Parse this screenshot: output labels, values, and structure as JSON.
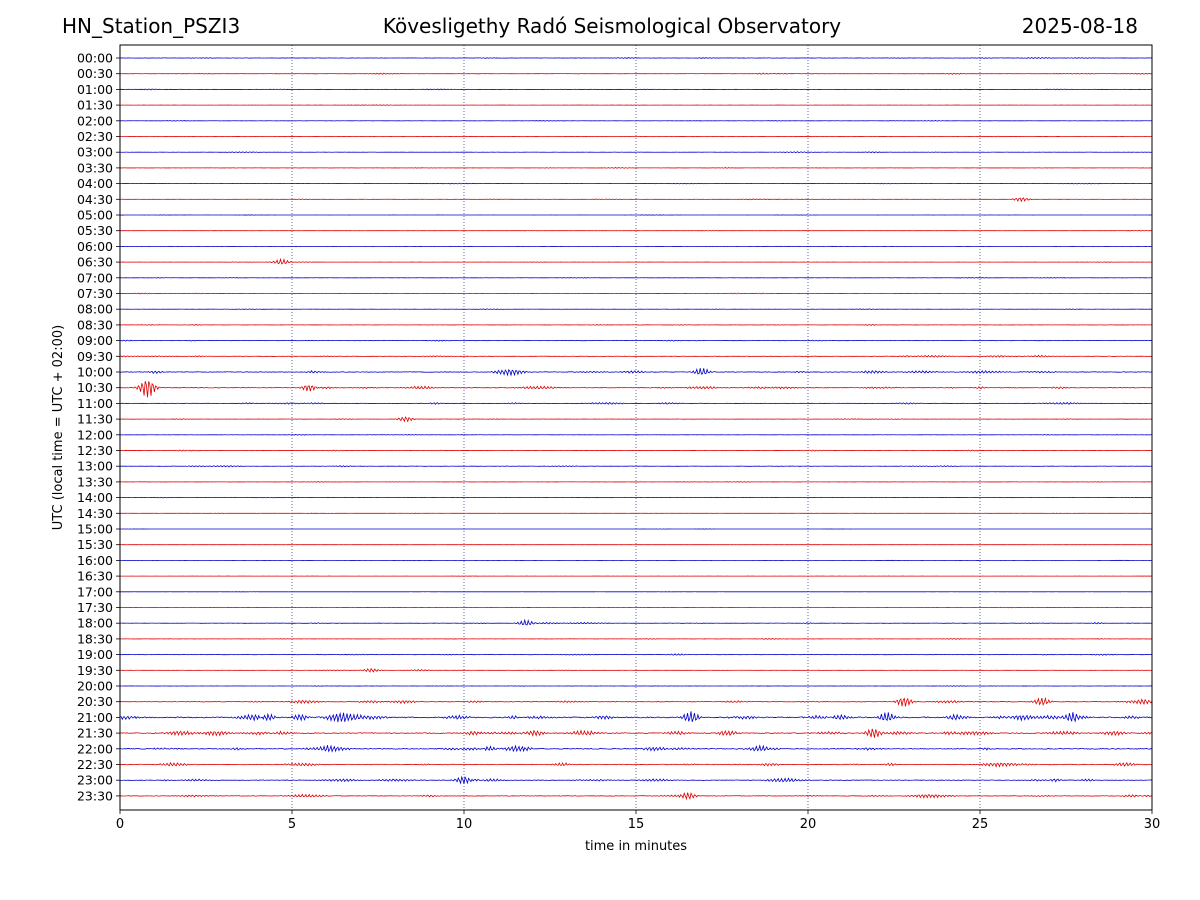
{
  "header": {
    "station": "HN_Station_PSZI3",
    "observatory": "Kövesligethy Radó Seismological Observatory",
    "date": "2025-08-18"
  },
  "chart_data": {
    "type": "line",
    "title": "Kövesligethy Radó Seismological Observatory",
    "xlabel": "time in minutes",
    "ylabel": "UTC (local time = UTC + 02:00)",
    "xlim": [
      0,
      30
    ],
    "xticks": [
      0,
      5,
      10,
      15,
      20,
      25,
      30
    ],
    "grid": "vertical dotted lines at 5-minute ticks",
    "row_labels": [
      "00:00",
      "00:30",
      "01:00",
      "01:30",
      "02:00",
      "02:30",
      "03:00",
      "03:30",
      "04:00",
      "04:30",
      "05:00",
      "05:30",
      "06:00",
      "06:30",
      "07:00",
      "07:30",
      "08:00",
      "08:30",
      "09:00",
      "09:30",
      "10:00",
      "10:30",
      "11:00",
      "11:30",
      "12:00",
      "12:30",
      "13:00",
      "13:30",
      "14:00",
      "14:30",
      "15:00",
      "15:30",
      "16:00",
      "16:30",
      "17:00",
      "17:30",
      "18:00",
      "18:30",
      "19:00",
      "19:30",
      "20:00",
      "20:30",
      "21:00",
      "21:30",
      "22:00",
      "22:30",
      "23:00",
      "23:30"
    ],
    "trace_colors": [
      "#0000cc",
      "#dd0000"
    ],
    "activity": [
      0.5,
      0.45,
      0.3,
      0.2,
      0.3,
      0.2,
      0.3,
      0.3,
      0.25,
      0.3,
      0.15,
      0.15,
      0.12,
      0.2,
      0.25,
      0.3,
      0.3,
      0.35,
      0.4,
      0.6,
      1.0,
      0.9,
      0.6,
      0.4,
      0.3,
      0.4,
      0.5,
      0.3,
      0.2,
      0.15,
      0.1,
      0.1,
      0.1,
      0.1,
      0.1,
      0.2,
      0.5,
      0.3,
      0.45,
      0.3,
      0.25,
      1.0,
      2.0,
      1.6,
      1.5,
      1.1,
      1.0,
      0.9
    ],
    "events": [
      {
        "row": "10:30",
        "minute": 0.8,
        "amplitude": 10
      },
      {
        "row": "10:30",
        "minute": 5.5,
        "amplitude": 4
      },
      {
        "row": "10:00",
        "minute": 16.9,
        "amplitude": 4
      },
      {
        "row": "21:00",
        "minute": 4.3,
        "amplitude": 5
      },
      {
        "row": "21:00",
        "minute": 16.6,
        "amplitude": 6
      },
      {
        "row": "21:00",
        "minute": 22.3,
        "amplitude": 5
      },
      {
        "row": "20:30",
        "minute": 22.8,
        "amplitude": 5
      },
      {
        "row": "20:30",
        "minute": 26.8,
        "amplitude": 4
      },
      {
        "row": "21:30",
        "minute": 21.9,
        "amplitude": 5
      },
      {
        "row": "23:30",
        "minute": 16.5,
        "amplitude": 4
      },
      {
        "row": "23:00",
        "minute": 10.0,
        "amplitude": 4
      },
      {
        "row": "06:30",
        "minute": 4.7,
        "amplitude": 3
      },
      {
        "row": "11:30",
        "minute": 8.3,
        "amplitude": 2.5
      },
      {
        "row": "19:30",
        "minute": 7.3,
        "amplitude": 2
      },
      {
        "row": "04:30",
        "minute": 26.2,
        "amplitude": 2
      },
      {
        "row": "18:00",
        "minute": 11.8,
        "amplitude": 3
      }
    ]
  }
}
